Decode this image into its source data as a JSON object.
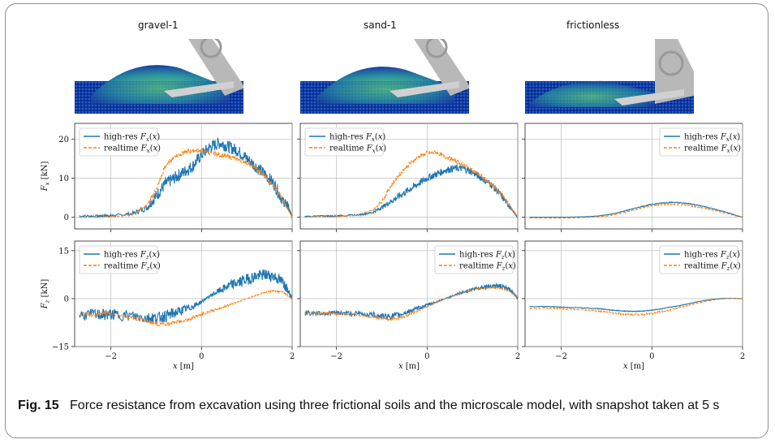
{
  "snapshots": [
    {
      "label": "gravel-1"
    },
    {
      "label": "sand-1"
    },
    {
      "label": "frictionless"
    }
  ],
  "caption": {
    "figure_label": "Fig. 15",
    "text": "Force resistance from excavation using three frictional soils and the microscale model, with snapshot taken at 5 s"
  },
  "colors": {
    "high_res": "#1f77b4",
    "realtime": "#ff7f0e"
  },
  "chart_data": [
    {
      "type": "line",
      "panel": "gravel-1 Fx",
      "ylabel": "F_x [kN]",
      "xlabel": "",
      "xlim": [
        -2.8,
        2.0
      ],
      "ylim": [
        -3,
        24
      ],
      "yticks": [
        0,
        10,
        20
      ],
      "xticks": [
        -2,
        0,
        2
      ],
      "grid": true,
      "legend": "top-left",
      "series": [
        {
          "name": "high-res F_x(x)",
          "x": [
            -2.7,
            -2.3,
            -2.1,
            -1.9,
            -1.5,
            -1.2,
            -1.0,
            -0.8,
            -0.6,
            -0.4,
            -0.2,
            0.0,
            0.2,
            0.4,
            0.6,
            0.8,
            1.0,
            1.2,
            1.4,
            1.6,
            1.8,
            1.9,
            2.0
          ],
          "y": [
            0.3,
            0.3,
            0.4,
            0.4,
            1.0,
            2.5,
            5.5,
            8.5,
            10,
            11.5,
            13,
            16,
            18,
            19,
            18,
            17,
            15,
            13,
            11,
            8.5,
            4,
            3,
            0
          ]
        },
        {
          "name": "realtime F_x(x)",
          "x": [
            -2.7,
            -2.3,
            -2.1,
            -1.9,
            -1.5,
            -1.2,
            -1.0,
            -0.8,
            -0.6,
            -0.4,
            -0.2,
            0.0,
            0.2,
            0.4,
            0.6,
            0.8,
            1.0,
            1.2,
            1.4,
            1.6,
            1.8,
            1.9,
            2.0
          ],
          "y": [
            0.0,
            0.0,
            0.1,
            0.2,
            0.8,
            3.0,
            7.0,
            13,
            15.5,
            16.5,
            17,
            17,
            16.5,
            16,
            15.5,
            14.8,
            14,
            12.5,
            10.5,
            8,
            4.5,
            2,
            0
          ]
        }
      ]
    },
    {
      "type": "line",
      "panel": "sand-1 Fx",
      "ylabel": "",
      "xlabel": "",
      "xlim": [
        -2.8,
        2.0
      ],
      "ylim": [
        -3,
        24
      ],
      "yticks": [
        0,
        10,
        20
      ],
      "xticks": [
        -2,
        0,
        2
      ],
      "grid": true,
      "legend": "top-left",
      "series": [
        {
          "name": "high-res F_x(x)",
          "x": [
            -2.7,
            -2.3,
            -2.1,
            -1.9,
            -1.5,
            -1.2,
            -1.0,
            -0.8,
            -0.6,
            -0.4,
            -0.2,
            0.0,
            0.2,
            0.4,
            0.6,
            0.8,
            1.0,
            1.2,
            1.4,
            1.6,
            1.8,
            1.9,
            2.0
          ],
          "y": [
            0.2,
            0.3,
            0.3,
            0.4,
            0.6,
            1.2,
            2.5,
            4,
            5.5,
            7,
            8.5,
            10,
            11,
            12,
            12.5,
            12.5,
            11.5,
            10,
            8.5,
            6,
            3,
            1.5,
            0
          ]
        },
        {
          "name": "realtime F_x(x)",
          "x": [
            -2.7,
            -2.3,
            -2.1,
            -1.9,
            -1.5,
            -1.2,
            -1.0,
            -0.8,
            -0.6,
            -0.4,
            -0.2,
            0.0,
            0.2,
            0.4,
            0.6,
            0.8,
            1.0,
            1.2,
            1.4,
            1.6,
            1.8,
            1.9,
            2.0
          ],
          "y": [
            0.0,
            0.1,
            0.1,
            0.2,
            0.6,
            1.8,
            4,
            8,
            11,
            13.5,
            15.5,
            16.5,
            16.5,
            15.5,
            14.5,
            13.5,
            12,
            10.5,
            8.5,
            6.5,
            3.5,
            1.5,
            0
          ]
        }
      ]
    },
    {
      "type": "line",
      "panel": "frictionless Fx",
      "ylabel": "",
      "xlabel": "",
      "xlim": [
        -2.8,
        2.0
      ],
      "ylim": [
        -3,
        24
      ],
      "yticks": [
        0,
        10,
        20
      ],
      "xticks": [
        -2,
        0,
        2
      ],
      "grid": true,
      "legend": "top-right",
      "series": [
        {
          "name": "high-res F_x(x)",
          "x": [
            -2.7,
            -2.3,
            -2.1,
            -1.9,
            -1.5,
            -1.2,
            -1.0,
            -0.8,
            -0.6,
            -0.4,
            -0.2,
            0.0,
            0.2,
            0.4,
            0.6,
            0.8,
            1.0,
            1.2,
            1.4,
            1.6,
            1.8,
            1.9,
            2.0
          ],
          "y": [
            0,
            0,
            0,
            0,
            0.1,
            0.3,
            0.6,
            1.0,
            1.6,
            2.2,
            2.8,
            3.3,
            3.6,
            3.8,
            3.7,
            3.5,
            3.1,
            2.6,
            2.0,
            1.4,
            0.7,
            0.3,
            0
          ]
        },
        {
          "name": "realtime F_x(x)",
          "x": [
            -2.7,
            -2.3,
            -2.1,
            -1.9,
            -1.5,
            -1.2,
            -1.0,
            -0.8,
            -0.6,
            -0.4,
            -0.2,
            0.0,
            0.2,
            0.4,
            0.6,
            0.8,
            1.0,
            1.2,
            1.4,
            1.6,
            1.8,
            1.9,
            2.0
          ],
          "y": [
            -0.2,
            -0.2,
            -0.2,
            -0.2,
            -0.1,
            0.1,
            0.3,
            0.7,
            1.2,
            1.8,
            2.4,
            2.9,
            3.2,
            3.3,
            3.2,
            3.0,
            2.6,
            2.2,
            1.7,
            1.1,
            0.5,
            0.2,
            0
          ]
        }
      ]
    },
    {
      "type": "line",
      "panel": "gravel-1 Fz",
      "ylabel": "F_z [kN]",
      "xlabel": "x [m]",
      "xlim": [
        -2.8,
        2.0
      ],
      "ylim": [
        -15,
        18
      ],
      "yticks": [
        -15,
        0,
        15
      ],
      "xticks": [
        -2,
        0,
        2
      ],
      "grid": true,
      "legend": "top-left",
      "series": [
        {
          "name": "high-res F_z(x)",
          "x": [
            -2.7,
            -2.3,
            -2.1,
            -1.9,
            -1.5,
            -1.2,
            -1.0,
            -0.8,
            -0.6,
            -0.4,
            -0.2,
            0.0,
            0.2,
            0.4,
            0.6,
            0.8,
            1.0,
            1.2,
            1.4,
            1.6,
            1.8,
            1.9,
            2.0
          ],
          "y": [
            -5,
            -5,
            -5,
            -5,
            -5.5,
            -6,
            -6,
            -5.5,
            -4.5,
            -3.5,
            -2.5,
            -1,
            1,
            2.5,
            4,
            5,
            6,
            7,
            7.5,
            7,
            5,
            3,
            0
          ]
        },
        {
          "name": "realtime F_z(x)",
          "x": [
            -2.7,
            -2.3,
            -2.1,
            -1.9,
            -1.5,
            -1.2,
            -1.0,
            -0.8,
            -0.6,
            -0.4,
            -0.2,
            0.0,
            0.2,
            0.4,
            0.6,
            0.8,
            1.0,
            1.2,
            1.4,
            1.6,
            1.8,
            1.9,
            2.0
          ],
          "y": [
            -5,
            -5,
            -4.5,
            -5,
            -6,
            -7,
            -8,
            -8,
            -7.5,
            -7,
            -6,
            -5,
            -4,
            -3,
            -2,
            -1,
            0,
            1,
            2,
            2.5,
            2,
            1,
            0
          ]
        }
      ]
    },
    {
      "type": "line",
      "panel": "sand-1 Fz",
      "ylabel": "",
      "xlabel": "x [m]",
      "xlim": [
        -2.8,
        2.0
      ],
      "ylim": [
        -15,
        18
      ],
      "yticks": [
        -15,
        0,
        15
      ],
      "xticks": [
        -2,
        0,
        2
      ],
      "grid": true,
      "legend": "top-right",
      "series": [
        {
          "name": "high-res F_z(x)",
          "x": [
            -2.7,
            -2.3,
            -2.1,
            -1.9,
            -1.5,
            -1.2,
            -1.0,
            -0.8,
            -0.6,
            -0.4,
            -0.2,
            0.0,
            0.2,
            0.4,
            0.6,
            0.8,
            1.0,
            1.2,
            1.4,
            1.6,
            1.8,
            1.9,
            2.0
          ],
          "y": [
            -4.5,
            -4.5,
            -4.5,
            -4.5,
            -4.8,
            -5,
            -5.5,
            -5.5,
            -5,
            -4,
            -3,
            -2,
            -1,
            0,
            1,
            2,
            3,
            3.5,
            4,
            4,
            3,
            2,
            0
          ]
        },
        {
          "name": "realtime F_z(x)",
          "x": [
            -2.7,
            -2.3,
            -2.1,
            -1.9,
            -1.5,
            -1.2,
            -1.0,
            -0.8,
            -0.6,
            -0.4,
            -0.2,
            0.0,
            0.2,
            0.4,
            0.6,
            0.8,
            1.0,
            1.2,
            1.4,
            1.6,
            1.8,
            1.9,
            2.0
          ],
          "y": [
            -4.5,
            -4.5,
            -4.5,
            -4.8,
            -5.2,
            -5.8,
            -6.3,
            -6.5,
            -6,
            -5,
            -3.8,
            -2.5,
            -1.2,
            0,
            1,
            2,
            2.8,
            3.2,
            3.5,
            3.3,
            2.5,
            1.5,
            0
          ]
        }
      ]
    },
    {
      "type": "line",
      "panel": "frictionless Fz",
      "ylabel": "",
      "xlabel": "x [m]",
      "xlim": [
        -2.8,
        2.0
      ],
      "ylim": [
        -15,
        18
      ],
      "yticks": [
        -15,
        0,
        15
      ],
      "xticks": [
        -2,
        0,
        2
      ],
      "grid": true,
      "legend": "top-right",
      "series": [
        {
          "name": "high-res F_z(x)",
          "x": [
            -2.7,
            -2.3,
            -2.1,
            -1.9,
            -1.5,
            -1.2,
            -1.0,
            -0.8,
            -0.6,
            -0.4,
            -0.2,
            0.0,
            0.2,
            0.4,
            0.6,
            0.8,
            1.0,
            1.2,
            1.4,
            1.6,
            1.8,
            1.9,
            2.0
          ],
          "y": [
            -2.5,
            -2.5,
            -2.6,
            -2.7,
            -2.9,
            -3.1,
            -3.4,
            -3.7,
            -3.9,
            -4,
            -3.9,
            -3.6,
            -3.2,
            -2.7,
            -2.2,
            -1.6,
            -1.0,
            -0.5,
            -0.1,
            0.1,
            0.1,
            0.05,
            0
          ]
        },
        {
          "name": "realtime F_z(x)",
          "x": [
            -2.7,
            -2.3,
            -2.1,
            -1.9,
            -1.5,
            -1.2,
            -1.0,
            -0.8,
            -0.6,
            -0.4,
            -0.2,
            0.0,
            0.2,
            0.4,
            0.6,
            0.8,
            1.0,
            1.2,
            1.4,
            1.6,
            1.8,
            1.9,
            2.0
          ],
          "y": [
            -3,
            -3,
            -3.1,
            -3.2,
            -3.5,
            -3.8,
            -4.2,
            -4.6,
            -4.9,
            -5,
            -4.9,
            -4.6,
            -4.1,
            -3.5,
            -2.8,
            -2.1,
            -1.4,
            -0.8,
            -0.3,
            0,
            0.1,
            0.05,
            0
          ]
        }
      ]
    }
  ]
}
